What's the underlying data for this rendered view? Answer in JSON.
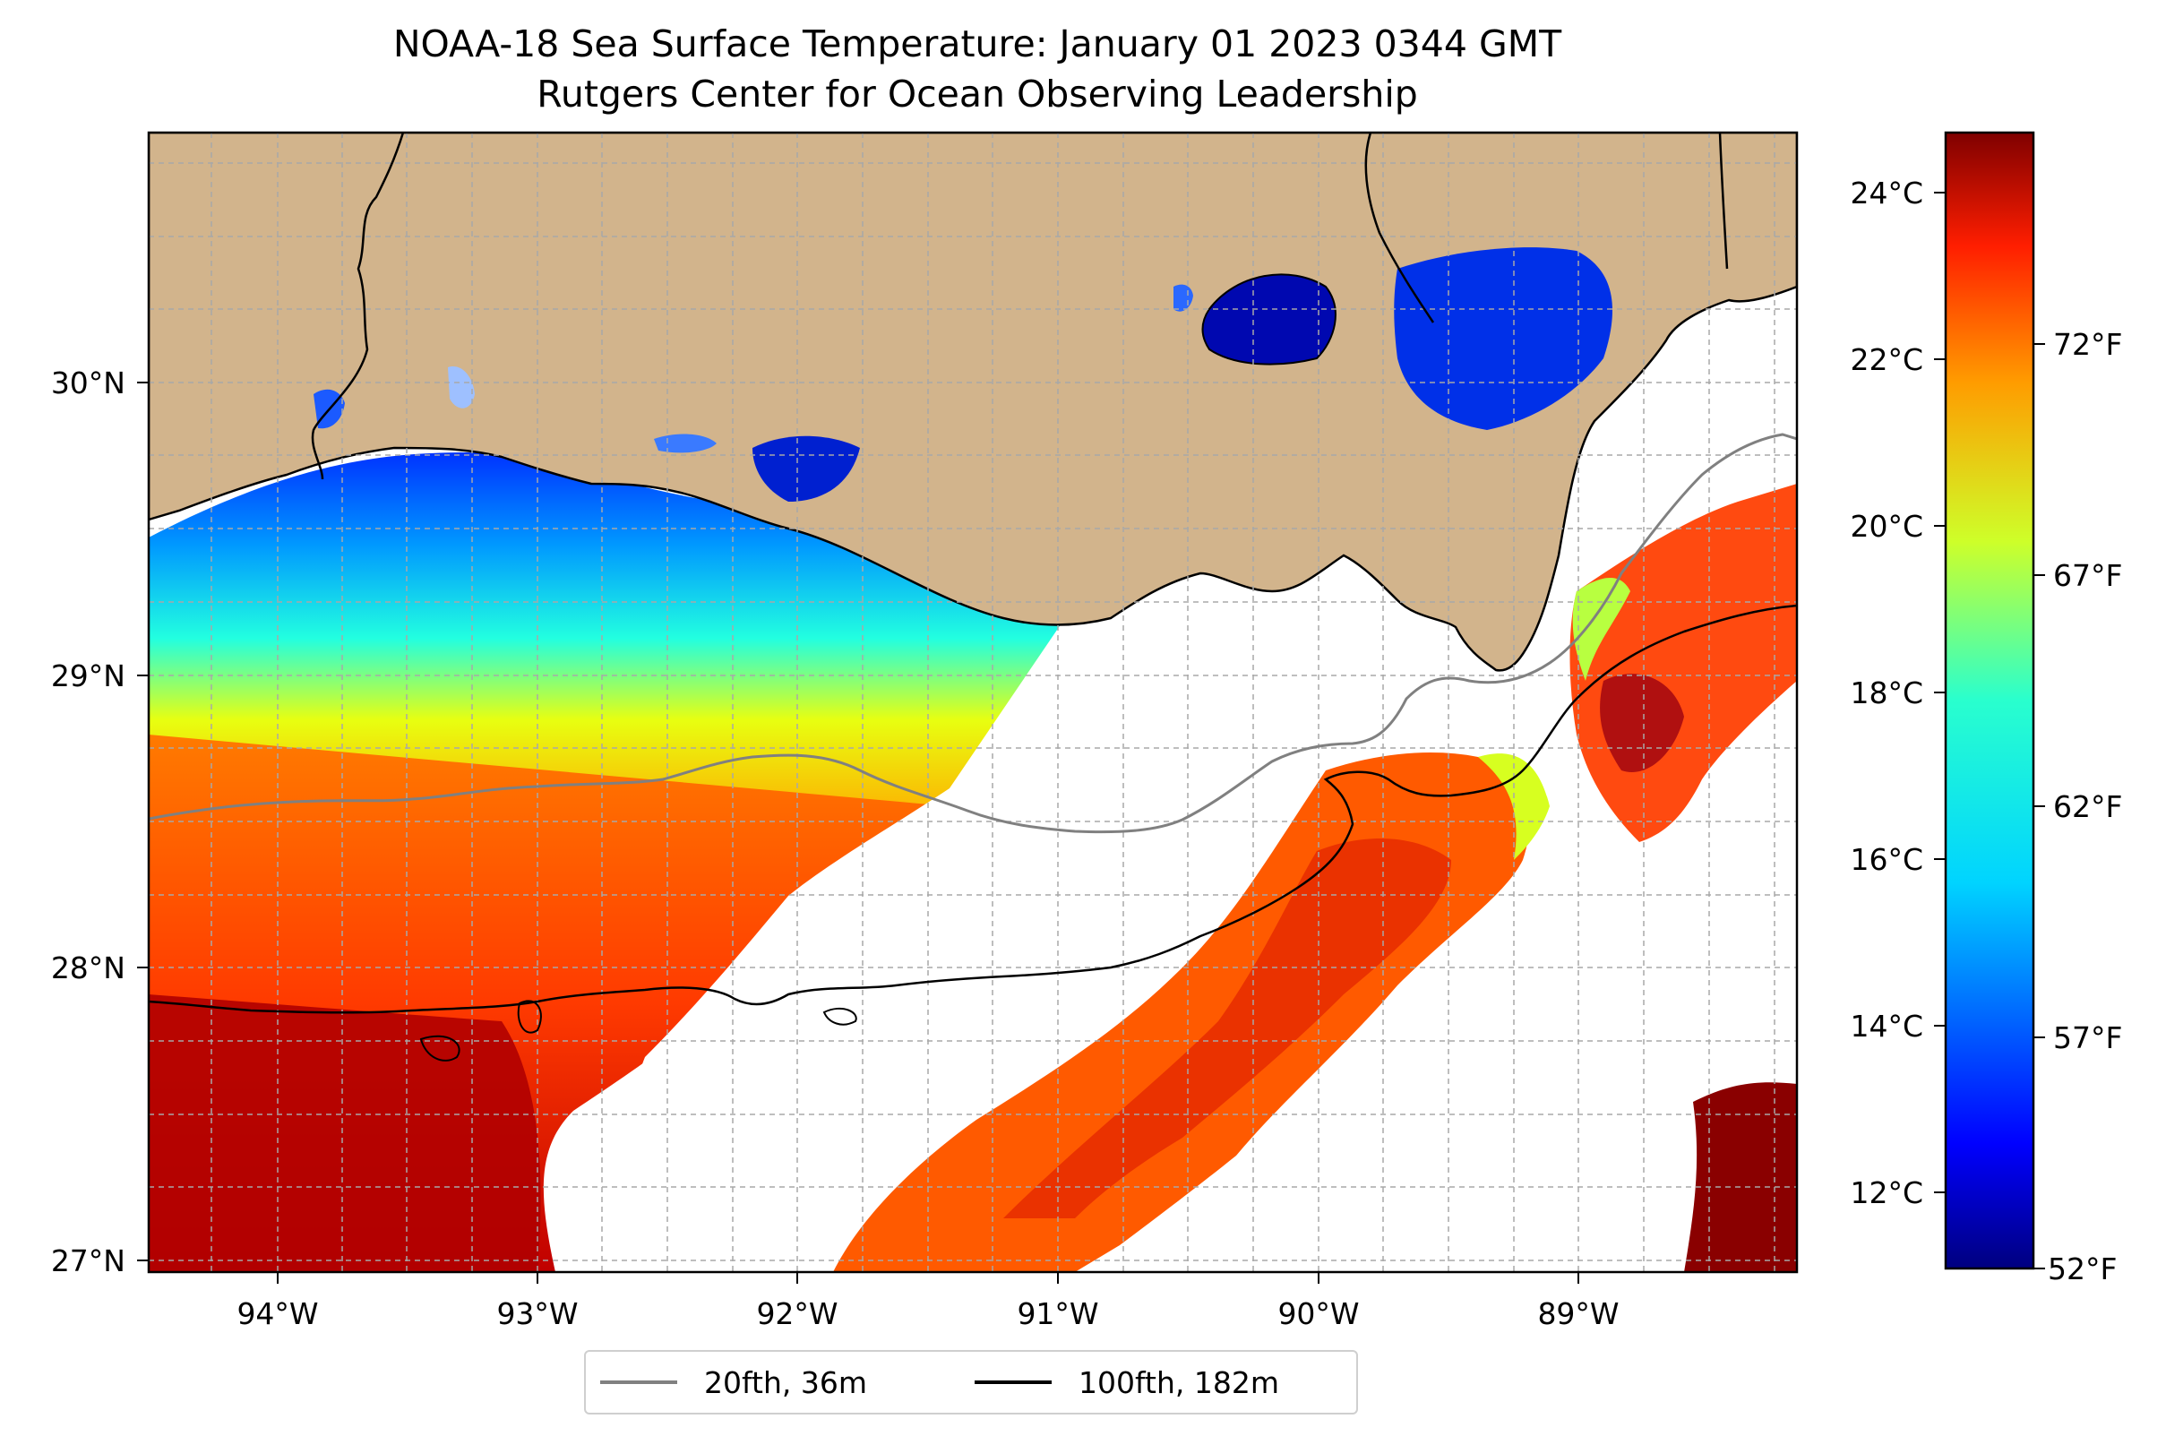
{
  "title": {
    "line1": "NOAA-18 Sea Surface Temperature: January 01 2023 0344 GMT",
    "line2": "Rutgers Center for Ocean Observing Leadership"
  },
  "map": {
    "lon_ticks": [
      "94°W",
      "93°W",
      "92°W",
      "91°W",
      "90°W",
      "89°W"
    ],
    "lat_ticks": [
      "30°N",
      "29°N",
      "28°N",
      "27°N"
    ],
    "land_color": "#d2b48c",
    "no_data_color": "#ffffff",
    "gridlines": "dashed"
  },
  "colorbar": {
    "celsius_ticks": [
      "24°C",
      "22°C",
      "20°C",
      "18°C",
      "16°C",
      "14°C",
      "12°C"
    ],
    "fahrenheit_ticks": [
      "72°F",
      "67°F",
      "62°F",
      "57°F",
      "52°F"
    ],
    "colormap": "jet"
  },
  "legend": {
    "items": [
      {
        "label": "20fth, 36m",
        "color": "#808080"
      },
      {
        "label": "100fth, 182m",
        "color": "#000000"
      }
    ]
  }
}
